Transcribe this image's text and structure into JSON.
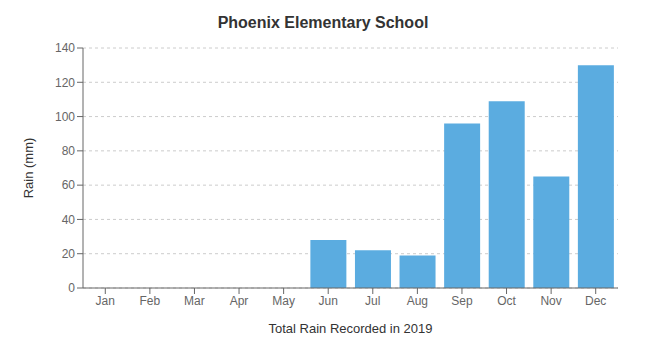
{
  "chart_data": {
    "type": "bar",
    "title": "Phoenix Elementary School",
    "xlabel": "Total Rain Recorded in 2019",
    "ylabel": "Rain (mm)",
    "categories": [
      "Jan",
      "Feb",
      "Mar",
      "Apr",
      "May",
      "Jun",
      "Jul",
      "Aug",
      "Sep",
      "Oct",
      "Nov",
      "Dec"
    ],
    "values": [
      0,
      0,
      0,
      0,
      0,
      28,
      22,
      19,
      96,
      109,
      65,
      130
    ],
    "color": "#5BACE0",
    "ylim": [
      0,
      140
    ],
    "yticks": [
      0,
      20,
      40,
      60,
      80,
      100,
      120,
      140
    ],
    "grid": true
  }
}
